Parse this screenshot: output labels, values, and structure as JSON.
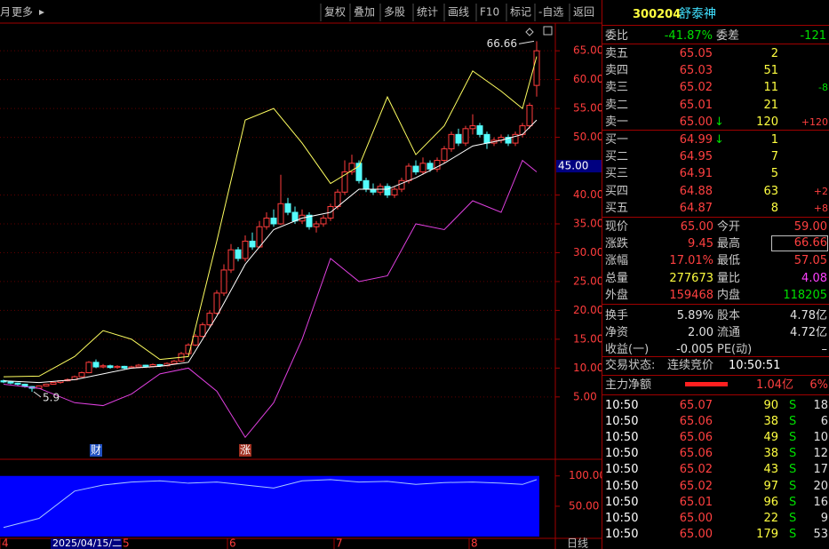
{
  "toolbar": {
    "left": [
      "月",
      "更多"
    ],
    "buttons": [
      "复权",
      "叠加",
      "多股",
      "统计",
      "画线",
      "F10",
      "标记",
      "-自选",
      "返回"
    ]
  },
  "chart_data": [
    {
      "type": "candlestick",
      "ylim": [
        -5.5,
        69.8
      ],
      "yticks": [
        {
          "value": 65,
          "label": "65.00"
        },
        {
          "value": 60,
          "label": "60.00"
        },
        {
          "value": 55,
          "label": "55.00"
        },
        {
          "value": 50,
          "label": "50.00"
        },
        {
          "value": 40,
          "label": "40.00"
        },
        {
          "value": 35,
          "label": "35.00"
        },
        {
          "value": 30,
          "label": "30.00"
        },
        {
          "value": 25,
          "label": "25.00"
        },
        {
          "value": 20,
          "label": "20.00"
        },
        {
          "value": 15,
          "label": "15.00"
        },
        {
          "value": 10,
          "label": "10.00"
        },
        {
          "value": 5,
          "label": "5.00"
        }
      ],
      "cursor": {
        "value": 45,
        "label": "45.00"
      },
      "cursor_date": "2025/04/15/二",
      "period": "日线",
      "up_color": "#ff3c3c",
      "down_color": "#54fcfc",
      "ohlc": [
        [
          7.8,
          8.0,
          7.4,
          7.6
        ],
        [
          7.6,
          7.8,
          7.2,
          7.4
        ],
        [
          7.4,
          7.5,
          7.0,
          7.2
        ],
        [
          7.2,
          7.3,
          6.6,
          6.8
        ],
        [
          6.8,
          6.9,
          5.9,
          6.5
        ],
        [
          6.5,
          7.0,
          6.4,
          6.9
        ],
        [
          6.9,
          7.3,
          6.8,
          7.2
        ],
        [
          7.2,
          7.6,
          7.1,
          7.5
        ],
        [
          7.5,
          7.9,
          7.3,
          7.8
        ],
        [
          7.8,
          8.2,
          7.7,
          8.0
        ],
        [
          8.0,
          8.7,
          7.9,
          8.5
        ],
        [
          8.5,
          9.4,
          8.4,
          9.2
        ],
        [
          9.2,
          11.2,
          9.1,
          11.0
        ],
        [
          11.0,
          11.5,
          10.0,
          10.2
        ],
        [
          10.2,
          10.7,
          10.0,
          10.4
        ],
        [
          10.4,
          10.6,
          9.9,
          10.1
        ],
        [
          10.1,
          10.5,
          9.9,
          10.3
        ],
        [
          10.3,
          10.4,
          9.8,
          10.0
        ],
        [
          10.0,
          10.4,
          9.9,
          10.2
        ],
        [
          10.2,
          10.7,
          10.1,
          10.5
        ],
        [
          10.5,
          10.6,
          10.1,
          10.3
        ],
        [
          10.3,
          10.8,
          10.2,
          10.6
        ],
        [
          10.6,
          10.7,
          10.2,
          10.4
        ],
        [
          10.4,
          11.0,
          10.3,
          10.8
        ],
        [
          10.8,
          11.4,
          10.7,
          11.2
        ],
        [
          11.2,
          12.8,
          11.1,
          12.5
        ],
        [
          12.5,
          14.3,
          12.3,
          14.0
        ],
        [
          14.0,
          15.9,
          13.8,
          15.5
        ],
        [
          15.5,
          17.9,
          15.3,
          17.5
        ],
        [
          17.5,
          20.0,
          17.2,
          19.5
        ],
        [
          19.5,
          23.5,
          19.3,
          23.0
        ],
        [
          23.0,
          28.0,
          22.5,
          27.0
        ],
        [
          27.0,
          31.5,
          26.5,
          30.5
        ],
        [
          30.5,
          31.0,
          28.5,
          29.0
        ],
        [
          29.0,
          33.0,
          28.5,
          32.0
        ],
        [
          32.0,
          33.5,
          30.5,
          31.0
        ],
        [
          31.0,
          35.5,
          30.8,
          34.5
        ],
        [
          34.5,
          37.0,
          34.0,
          36.0
        ],
        [
          36.0,
          37.5,
          34.5,
          35.0
        ],
        [
          35.0,
          43.5,
          34.8,
          38.5
        ],
        [
          38.5,
          39.5,
          36.5,
          37.0
        ],
        [
          37.0,
          38.0,
          35.0,
          35.5
        ],
        [
          35.5,
          37.5,
          35.0,
          36.5
        ],
        [
          36.5,
          37.0,
          34.0,
          34.5
        ],
        [
          34.5,
          35.5,
          33.5,
          35.0
        ],
        [
          35.0,
          36.5,
          34.5,
          36.0
        ],
        [
          36.0,
          38.5,
          35.5,
          38.0
        ],
        [
          38.0,
          41.0,
          37.5,
          40.5
        ],
        [
          40.5,
          46.0,
          40.0,
          44.0
        ],
        [
          44.0,
          47.0,
          43.5,
          45.5
        ],
        [
          45.5,
          46.0,
          42.0,
          42.5
        ],
        [
          42.5,
          43.0,
          40.5,
          41.0
        ],
        [
          41.0,
          42.0,
          40.0,
          40.5
        ],
        [
          40.5,
          42.0,
          40.0,
          41.5
        ],
        [
          41.5,
          42.0,
          39.5,
          40.0
        ],
        [
          40.0,
          41.5,
          39.5,
          41.0
        ],
        [
          41.0,
          43.0,
          40.5,
          42.5
        ],
        [
          42.5,
          45.5,
          42.0,
          45.0
        ],
        [
          45.0,
          46.0,
          43.5,
          44.0
        ],
        [
          44.0,
          46.5,
          43.5,
          45.5
        ],
        [
          45.5,
          46.0,
          44.0,
          44.5
        ],
        [
          44.5,
          46.5,
          44.0,
          46.0
        ],
        [
          46.0,
          48.5,
          45.5,
          48.0
        ],
        [
          48.0,
          51.0,
          47.5,
          50.5
        ],
        [
          50.5,
          51.5,
          48.5,
          49.0
        ],
        [
          49.0,
          52.0,
          48.5,
          51.5
        ],
        [
          51.5,
          54.0,
          50.5,
          52.0
        ],
        [
          52.0,
          52.5,
          50.0,
          50.5
        ],
        [
          50.5,
          51.0,
          48.0,
          49.0
        ],
        [
          49.0,
          50.0,
          48.5,
          49.5
        ],
        [
          49.5,
          50.5,
          49.0,
          50.0
        ],
        [
          50.0,
          50.5,
          48.5,
          49.0
        ],
        [
          49.0,
          51.0,
          48.5,
          50.5
        ],
        [
          50.5,
          52.5,
          50.0,
          52.0
        ],
        [
          52.0,
          56.0,
          51.5,
          55.55
        ],
        [
          59.0,
          66.66,
          57.05,
          65.0
        ]
      ],
      "band_x": [
        0,
        5,
        10,
        14,
        18,
        22,
        26,
        30,
        34,
        38,
        42,
        46,
        50,
        54,
        58,
        62,
        66,
        70,
        73,
        75
      ],
      "bands": [
        {
          "color": "#ffff60",
          "values": [
            8.5,
            8.6,
            12.0,
            16.5,
            15.0,
            11.5,
            12.0,
            32.0,
            53.0,
            55.0,
            49.0,
            42.0,
            45.0,
            57.0,
            47.0,
            52.0,
            61.5,
            58.0,
            55.0,
            64.0
          ]
        },
        {
          "color": "#ffffff",
          "values": [
            7.8,
            7.5,
            8.0,
            9.0,
            10.0,
            10.3,
            11.0,
            19.0,
            28.0,
            34.0,
            36.0,
            37.0,
            41.0,
            41.0,
            43.0,
            45.5,
            48.5,
            49.5,
            50.5,
            53.0
          ]
        },
        {
          "color": "#e040e0",
          "values": [
            7.2,
            6.5,
            4.0,
            3.5,
            5.5,
            9.0,
            10.0,
            6.0,
            -2.0,
            4.0,
            15.0,
            29.0,
            25.0,
            26.0,
            35.0,
            34.0,
            39.0,
            37.0,
            46.0,
            44.0
          ]
        }
      ],
      "markers": [
        {
          "text": "财",
          "x": 13,
          "color": "#2050c0"
        },
        {
          "text": "涨",
          "x": 34,
          "color": "#a03020"
        }
      ],
      "xlabels": [
        {
          "x": 0,
          "label": "4"
        },
        {
          "x": 17,
          "label": "5"
        },
        {
          "x": 32,
          "label": "6"
        },
        {
          "x": 47,
          "label": "7"
        },
        {
          "x": 66,
          "label": "8"
        }
      ]
    },
    {
      "type": "line",
      "ylim": [
        0,
        126
      ],
      "yticks": [
        {
          "value": 100,
          "label": "100.00"
        },
        {
          "value": 50,
          "label": "50.00"
        }
      ],
      "fill": "#0000ff",
      "color": "#a8c8ff",
      "x": [
        0,
        5,
        10,
        14,
        18,
        22,
        26,
        30,
        34,
        38,
        42,
        46,
        50,
        54,
        58,
        62,
        66,
        70,
        73,
        75
      ],
      "values": [
        15,
        30,
        75,
        85,
        90,
        92,
        88,
        90,
        85,
        80,
        92,
        94,
        90,
        91,
        86,
        89,
        90,
        88,
        86,
        94
      ]
    }
  ],
  "quote": {
    "code": "300204",
    "name": "舒泰神",
    "weibi": {
      "label": "委比",
      "value": "-41.87%",
      "label2": "委差",
      "value2": "-121"
    },
    "book": [
      {
        "label": "卖五",
        "price": "65.05",
        "volume": 2
      },
      {
        "label": "卖四",
        "price": "65.03",
        "volume": 51
      },
      {
        "label": "卖三",
        "price": "65.02",
        "volume": 11,
        "change": "-8"
      },
      {
        "label": "卖二",
        "price": "65.01",
        "volume": 21
      },
      {
        "label": "卖一",
        "price": "65.00",
        "arrow": "↓",
        "volume": 120,
        "change": "+120"
      },
      {
        "label": "买一",
        "price": "64.99",
        "arrow": "↓",
        "volume": 1
      },
      {
        "label": "买二",
        "price": "64.95",
        "volume": 7
      },
      {
        "label": "买三",
        "price": "64.91",
        "volume": 5
      },
      {
        "label": "买四",
        "price": "64.88",
        "volume": 63,
        "change": "+2"
      },
      {
        "label": "买五",
        "price": "64.87",
        "volume": 8,
        "change": "+8"
      }
    ],
    "stats": [
      {
        "label": "现价",
        "value": "65.00",
        "color": "#ff4040",
        "label2": "今开",
        "value2": "59.00",
        "color2": "#ff4040"
      },
      {
        "label": "涨跌",
        "value": "9.45",
        "color": "#ff4040",
        "label2": "最高",
        "value2": "66.66",
        "color2": "#ff4040"
      },
      {
        "label": "涨幅",
        "value": "17.01%",
        "color": "#ff4040",
        "label2": "最低",
        "value2": "57.05",
        "color2": "#ff4040"
      },
      {
        "label": "总量",
        "value": "277673",
        "color": "#ffff40",
        "label2": "量比",
        "value2": "4.08",
        "color2": "#ff40ff"
      },
      {
        "label": "外盘",
        "value": "159468",
        "color": "#ff4040",
        "label2": "内盘",
        "value2": "118205",
        "color2": "#00e000"
      },
      {
        "label": "换手",
        "value": "5.89%",
        "color": "#e0e0e0",
        "label2": "股本",
        "value2": "4.78亿",
        "color2": "#e0e0e0"
      },
      {
        "label": "净资",
        "value": "2.00",
        "color": "#e0e0e0",
        "label2": "流通",
        "value2": "4.72亿",
        "color2": "#e0e0e0"
      },
      {
        "label": "收益(一)",
        "value": "-0.005",
        "color": "#e0e0e0",
        "label2": "PE(动)",
        "value2": "–",
        "color2": "#e0e0e0"
      }
    ],
    "status": {
      "label": "交易状态:",
      "value": "连续竞价",
      "time": "10:50:51"
    },
    "main_force": {
      "label": "主力净额",
      "value": "1.04亿",
      "pct": "6%"
    },
    "ticks": [
      {
        "time": "10:50",
        "price": "65.07",
        "volume": 90,
        "side": "S",
        "count": 18
      },
      {
        "time": "10:50",
        "price": "65.06",
        "volume": 38,
        "side": "S",
        "count": 6
      },
      {
        "time": "10:50",
        "price": "65.06",
        "volume": 49,
        "side": "S",
        "count": 10
      },
      {
        "time": "10:50",
        "price": "65.06",
        "volume": 38,
        "side": "S",
        "count": 12
      },
      {
        "time": "10:50",
        "price": "65.02",
        "volume": 43,
        "side": "S",
        "count": 17
      },
      {
        "time": "10:50",
        "price": "65.02",
        "volume": 97,
        "side": "S",
        "count": 20
      },
      {
        "time": "10:50",
        "price": "65.01",
        "volume": 96,
        "side": "S",
        "count": 16
      },
      {
        "time": "10:50",
        "price": "65.00",
        "volume": 22,
        "side": "S",
        "count": 9
      },
      {
        "time": "10:50",
        "price": "65.00",
        "volume": 179,
        "side": "S",
        "count": 53
      }
    ]
  }
}
